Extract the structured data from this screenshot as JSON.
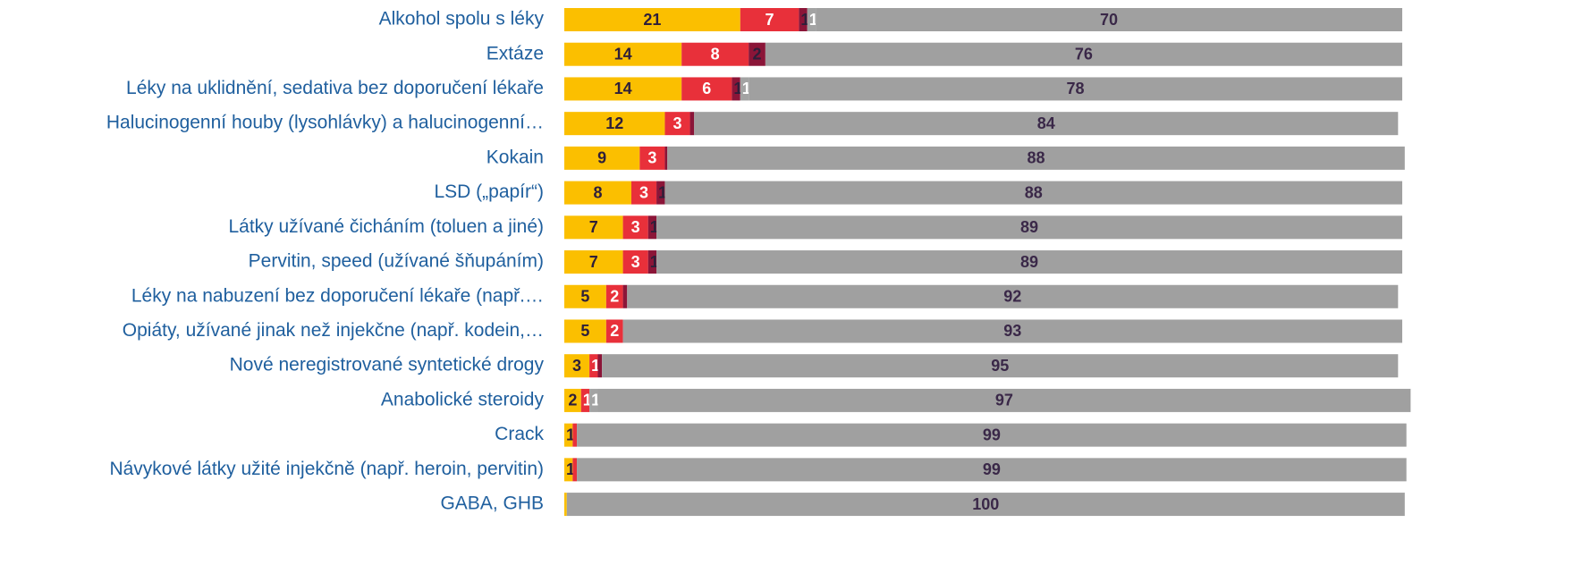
{
  "chart_data": {
    "type": "stacked_barh",
    "categories": [
      "Alkohol spolu s léky",
      "Extáze",
      "Léky na uklidnění, sedativa bez doporučení lékaře",
      "Halucinogenní houby (lysohlávky) a halucinogenní…",
      "Kokain",
      "LSD („papír“)",
      "Látky užívané čicháním (toluen a jiné)",
      "Pervitin, speed (užívané šňupáním)",
      "Léky na nabuzení bez doporučení lékaře (např.…",
      "Opiáty, užívané jinak než injekčne (např. kodein,…",
      "Nové neregistrované syntetické drogy",
      "Anabolické steroidy",
      "Crack",
      "Návykové látky užité injekčně (např. heroin, pervitin)",
      "GABA, GHB"
    ],
    "xlim": [
      0,
      100
    ],
    "series": [
      {
        "color": "#fbbf00",
        "label_color": "#2e1f3a",
        "values": [
          21,
          14,
          14,
          12,
          9,
          8,
          7,
          7,
          5,
          5,
          3,
          2,
          1,
          1,
          0.3
        ]
      },
      {
        "color": "#e8303a",
        "label_color": "#ffffff",
        "values": [
          7,
          8,
          6,
          3,
          3,
          3,
          3,
          3,
          2,
          2,
          1,
          1,
          0.5,
          0.5,
          0
        ]
      },
      {
        "color": "#8b1538",
        "label_color": "#2e1f3a",
        "values": [
          1,
          2,
          1,
          0.5,
          0.3,
          1,
          1,
          1,
          0.5,
          0,
          0.5,
          0,
          0,
          0,
          0
        ]
      },
      {
        "color": "#a3a3a3",
        "label_color": "#ffffff",
        "values": [
          1,
          0,
          1,
          0,
          0,
          0,
          0,
          0,
          0,
          0,
          0,
          1,
          0,
          0,
          0
        ]
      },
      {
        "color": "#a0a0a0",
        "label_color": "#3a2848",
        "values": [
          70,
          76,
          78,
          84,
          88,
          88,
          89,
          89,
          92,
          93,
          95,
          97,
          99,
          99,
          100
        ]
      }
    ]
  }
}
